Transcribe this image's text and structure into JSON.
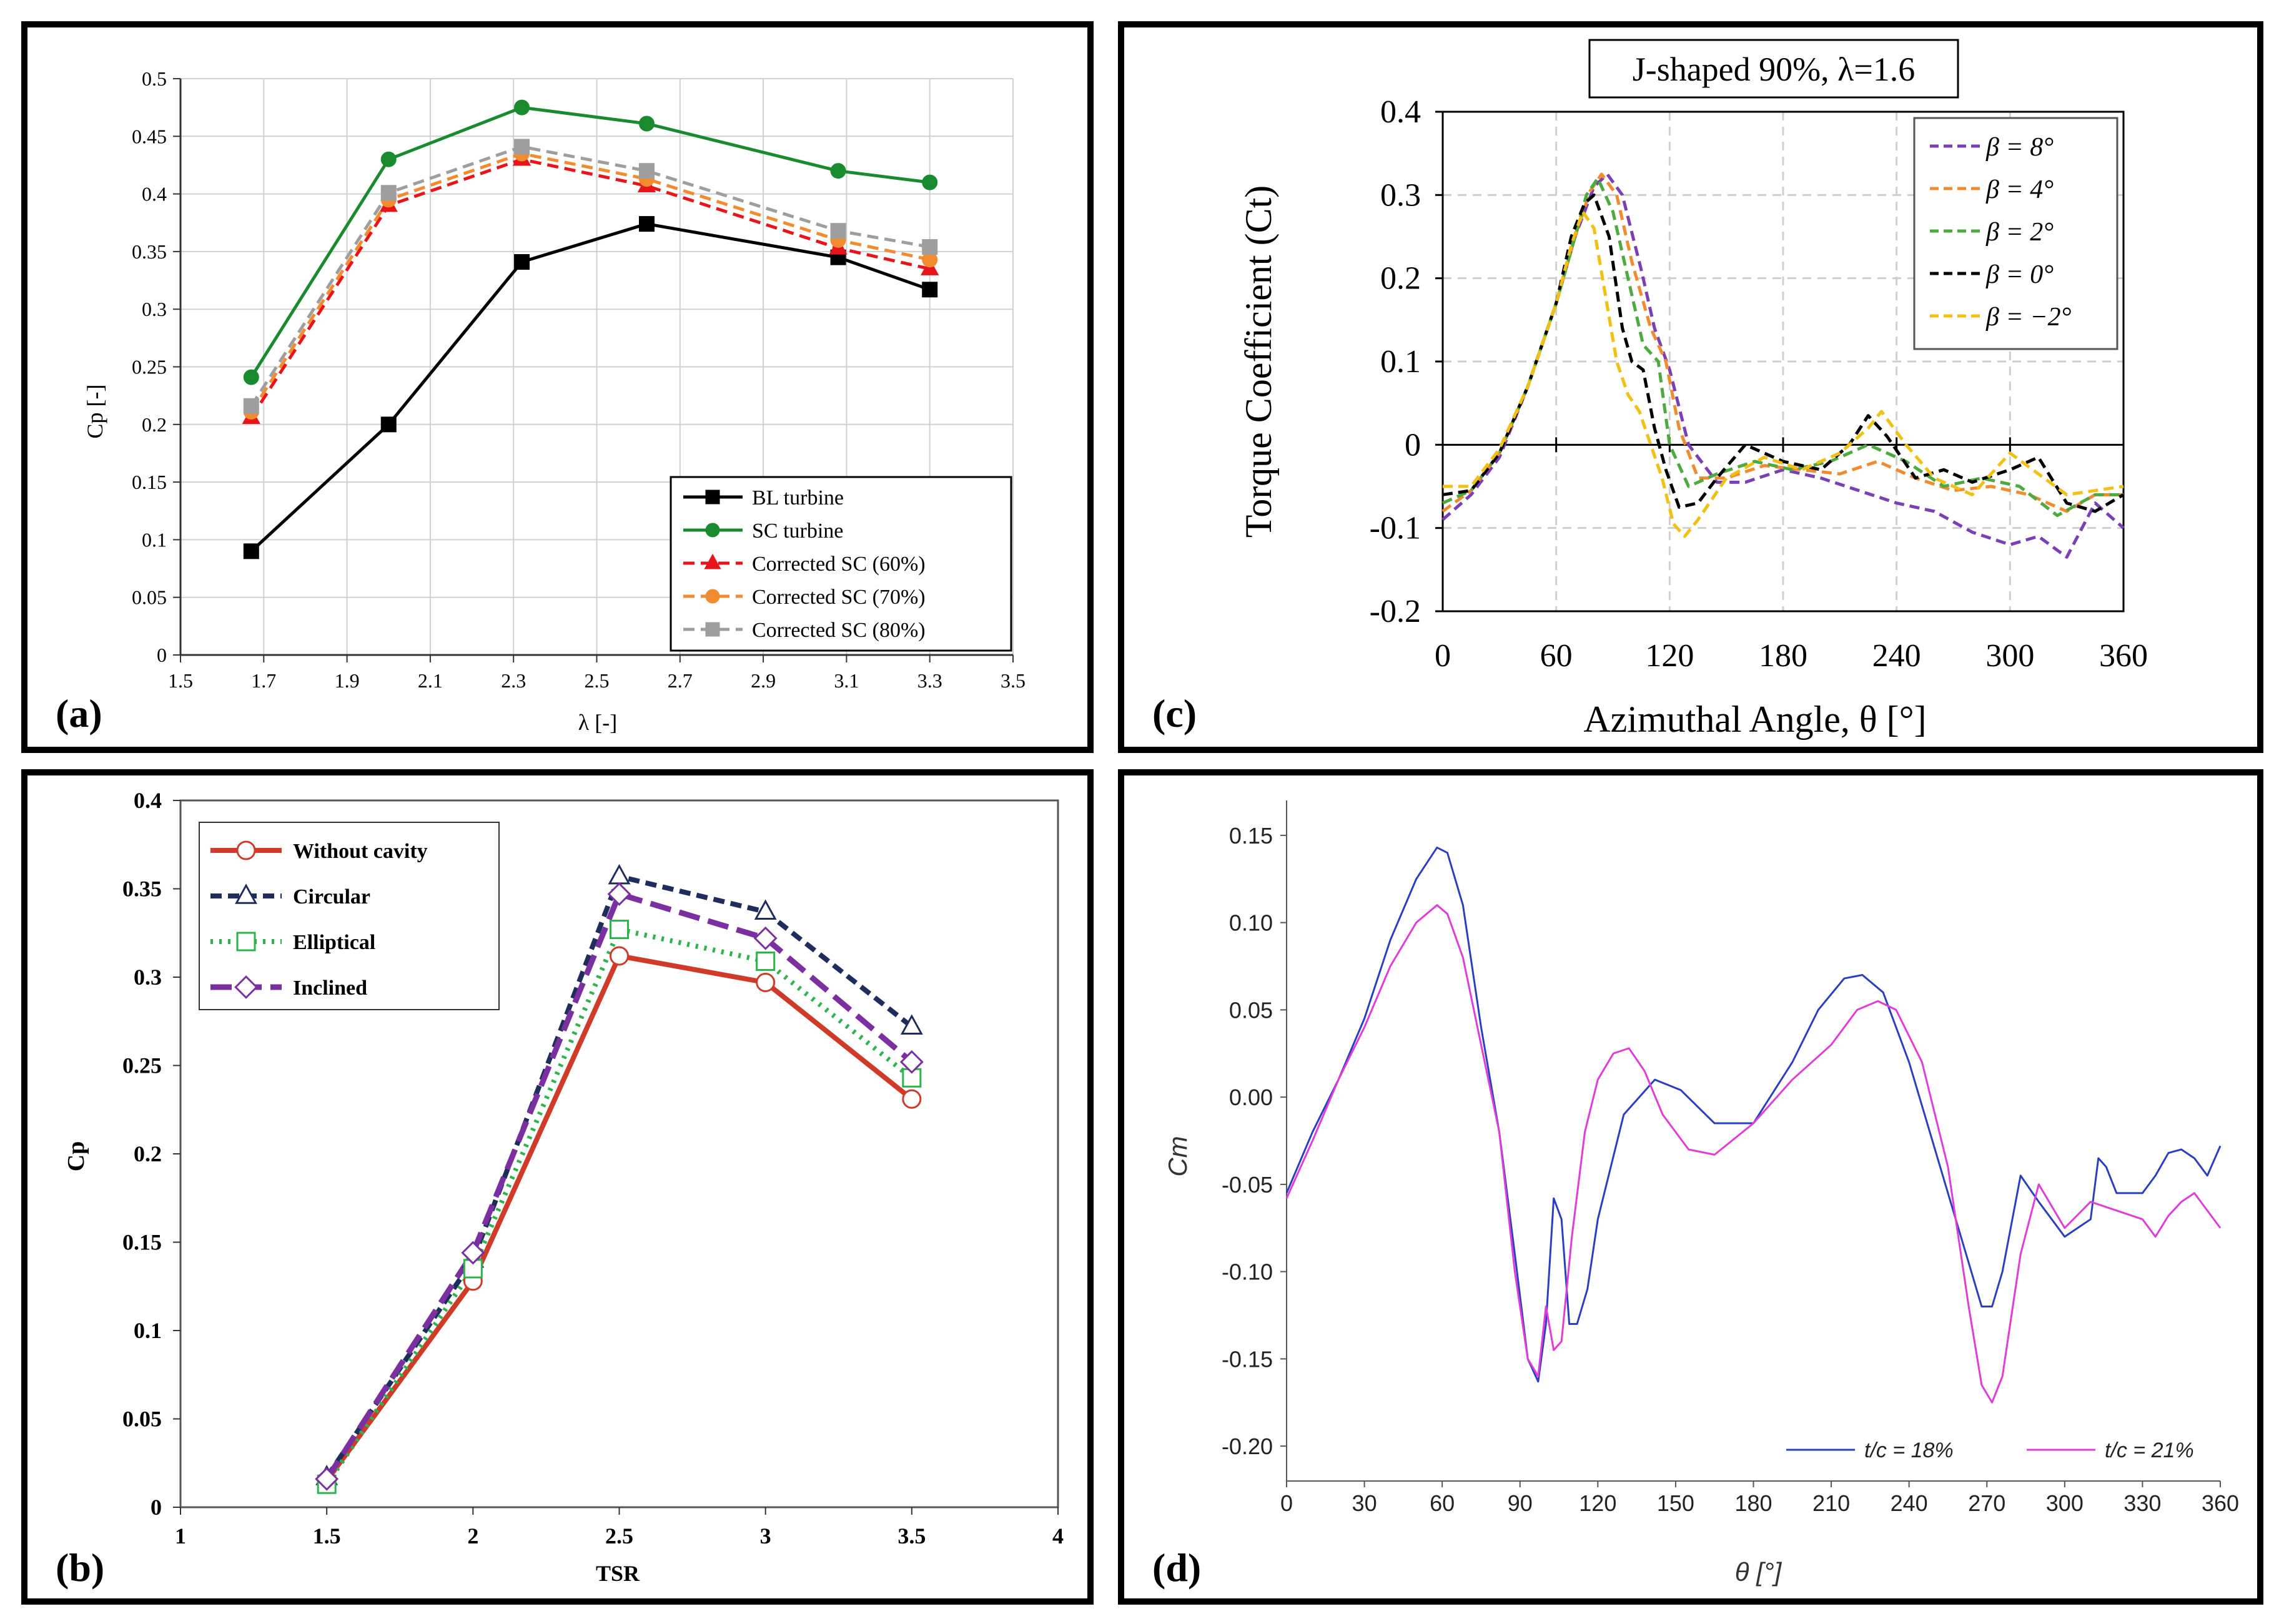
{
  "chart_data": [
    {
      "id": "a",
      "type": "line",
      "panel_label": "(a)",
      "xlabel": "λ [-]",
      "ylabel": "Cp [-]",
      "xlim": [
        1.5,
        3.5
      ],
      "ylim": [
        0,
        0.5
      ],
      "xticks": [
        "1.5",
        "1.7",
        "1.9",
        "2.1",
        "2.3",
        "2.5",
        "2.7",
        "2.9",
        "3.1",
        "3.3",
        "3.5"
      ],
      "yticks": [
        "0",
        "0.05",
        "0.1",
        "0.15",
        "0.2",
        "0.25",
        "0.3",
        "0.35",
        "0.4",
        "0.45",
        "0.5"
      ],
      "grid": true,
      "legend_position": "bottom-right",
      "x": [
        1.67,
        2.0,
        2.32,
        2.62,
        3.08,
        3.3
      ],
      "series": [
        {
          "name": "BL turbine",
          "color": "#000000",
          "dash": "solid",
          "marker": "square",
          "values": [
            0.09,
            0.2,
            0.341,
            0.374,
            0.345,
            0.317
          ]
        },
        {
          "name": "SC turbine",
          "color": "#1a8a2e",
          "dash": "solid",
          "marker": "circle",
          "values": [
            0.241,
            0.43,
            0.475,
            0.461,
            0.42,
            0.41
          ]
        },
        {
          "name": "Corrected SC (60%)",
          "color": "#e8141b",
          "dash": "dashed",
          "marker": "triangle",
          "values": [
            0.206,
            0.39,
            0.43,
            0.407,
            0.353,
            0.335
          ]
        },
        {
          "name": "Corrected SC (70%)",
          "color": "#f28b30",
          "dash": "dashed",
          "marker": "circle",
          "values": [
            0.211,
            0.395,
            0.435,
            0.413,
            0.36,
            0.343
          ]
        },
        {
          "name": "Corrected SC (80%)",
          "color": "#9e9e9e",
          "dash": "dashed",
          "marker": "square",
          "values": [
            0.216,
            0.401,
            0.441,
            0.42,
            0.368,
            0.354
          ]
        }
      ]
    },
    {
      "id": "b",
      "type": "line",
      "panel_label": "(b)",
      "xlabel": "TSR",
      "ylabel": "Cp",
      "xlim": [
        1,
        4
      ],
      "ylim": [
        0,
        0.4
      ],
      "xticks": [
        "1",
        "1.5",
        "2",
        "2.5",
        "3",
        "3.5",
        "4"
      ],
      "yticks": [
        "0",
        "0.05",
        "0.1",
        "0.15",
        "0.2",
        "0.25",
        "0.3",
        "0.35",
        "0.4"
      ],
      "grid": false,
      "legend_position": "top-left",
      "x": [
        1.5,
        2,
        2.5,
        3,
        3.5
      ],
      "series": [
        {
          "name": "Without cavity",
          "color": "#d03a28",
          "dash": "solid",
          "marker": "circle",
          "values": [
            0.015,
            0.128,
            0.312,
            0.297,
            0.231
          ]
        },
        {
          "name": "Circular",
          "color": "#1f2d5c",
          "dash": "dashed",
          "marker": "triangle",
          "values": [
            0.017,
            0.14,
            0.357,
            0.337,
            0.272
          ]
        },
        {
          "name": "Elliptical",
          "color": "#2cb34a",
          "dash": "dotted",
          "marker": "square",
          "values": [
            0.013,
            0.135,
            0.327,
            0.309,
            0.243
          ]
        },
        {
          "name": "Inclined",
          "color": "#7b2fa0",
          "dash": "longdash",
          "marker": "diamond",
          "values": [
            0.016,
            0.144,
            0.347,
            0.322,
            0.252
          ]
        }
      ]
    },
    {
      "id": "c",
      "type": "line",
      "panel_label": "(c)",
      "title": "J-shaped 90%, λ=1.6",
      "xlabel": "Azimuthal Angle, θ [°]",
      "ylabel": "Torque Coefficient (Ct)",
      "xlim": [
        0,
        360
      ],
      "ylim": [
        -0.2,
        0.4
      ],
      "xticks": [
        "0",
        "60",
        "120",
        "180",
        "240",
        "300",
        "360"
      ],
      "yticks": [
        "-0.2",
        "-0.1",
        "0",
        "0.1",
        "0.2",
        "0.3",
        "0.4"
      ],
      "grid": true,
      "legend_position": "top-right",
      "series": [
        {
          "name": "β = 8°",
          "color": "#7a3fb5",
          "dash": "dashed",
          "x": [
            0,
            15,
            30,
            45,
            60,
            70,
            80,
            87,
            95,
            105,
            112,
            120,
            130,
            145,
            160,
            180,
            200,
            220,
            240,
            260,
            280,
            300,
            315,
            330,
            345,
            360
          ],
          "values": [
            -0.09,
            -0.06,
            -0.015,
            0.07,
            0.17,
            0.25,
            0.31,
            0.325,
            0.3,
            0.21,
            0.14,
            0.09,
            0.0,
            -0.045,
            -0.045,
            -0.03,
            -0.04,
            -0.055,
            -0.07,
            -0.08,
            -0.105,
            -0.12,
            -0.11,
            -0.135,
            -0.07,
            -0.1
          ]
        },
        {
          "name": "β = 4°",
          "color": "#f28b30",
          "dash": "dashed",
          "x": [
            0,
            15,
            30,
            45,
            60,
            70,
            78,
            84,
            92,
            100,
            110,
            118,
            125,
            135,
            150,
            170,
            190,
            210,
            230,
            250,
            270,
            290,
            310,
            330,
            345,
            360
          ],
          "values": [
            -0.08,
            -0.055,
            -0.01,
            0.07,
            0.17,
            0.25,
            0.305,
            0.325,
            0.3,
            0.22,
            0.14,
            0.1,
            0.02,
            -0.04,
            -0.04,
            -0.025,
            -0.03,
            -0.035,
            -0.02,
            -0.04,
            -0.055,
            -0.05,
            -0.06,
            -0.08,
            -0.06,
            -0.06
          ]
        },
        {
          "name": "β = 2°",
          "color": "#4caa3e",
          "dash": "dashed",
          "x": [
            0,
            15,
            30,
            45,
            60,
            70,
            76,
            82,
            90,
            98,
            106,
            114,
            120,
            130,
            145,
            165,
            185,
            205,
            225,
            245,
            265,
            285,
            305,
            325,
            345,
            360
          ],
          "values": [
            -0.07,
            -0.055,
            -0.01,
            0.07,
            0.17,
            0.25,
            0.3,
            0.32,
            0.28,
            0.2,
            0.12,
            0.1,
            0.0,
            -0.05,
            -0.035,
            -0.02,
            -0.03,
            -0.02,
            0.0,
            -0.02,
            -0.05,
            -0.04,
            -0.05,
            -0.085,
            -0.06,
            -0.06
          ]
        },
        {
          "name": "β = 0°",
          "color": "#000000",
          "dash": "dashed",
          "x": [
            0,
            15,
            30,
            45,
            60,
            68,
            75,
            80,
            88,
            95,
            100,
            106,
            112,
            118,
            125,
            135,
            145,
            160,
            180,
            200,
            215,
            225,
            235,
            250,
            265,
            280,
            300,
            315,
            330,
            345,
            360
          ],
          "values": [
            -0.06,
            -0.055,
            -0.01,
            0.07,
            0.17,
            0.25,
            0.29,
            0.3,
            0.25,
            0.14,
            0.1,
            0.09,
            0.02,
            -0.03,
            -0.075,
            -0.07,
            -0.04,
            0.0,
            -0.02,
            -0.03,
            0.0,
            0.035,
            0.01,
            -0.04,
            -0.03,
            -0.045,
            -0.03,
            -0.015,
            -0.07,
            -0.08,
            -0.06
          ]
        },
        {
          "name": "β = −2°",
          "color": "#f2c013",
          "dash": "dashed",
          "x": [
            0,
            15,
            30,
            45,
            60,
            68,
            74,
            80,
            86,
            92,
            98,
            104,
            110,
            116,
            122,
            128,
            135,
            150,
            170,
            190,
            210,
            225,
            232,
            245,
            260,
            280,
            300,
            315,
            330,
            345,
            360
          ],
          "values": [
            -0.05,
            -0.05,
            -0.005,
            0.07,
            0.17,
            0.24,
            0.28,
            0.26,
            0.18,
            0.1,
            0.06,
            0.04,
            0.0,
            -0.04,
            -0.095,
            -0.11,
            -0.09,
            -0.04,
            -0.015,
            -0.03,
            -0.01,
            0.02,
            0.04,
            0.0,
            -0.04,
            -0.06,
            -0.01,
            -0.035,
            -0.06,
            -0.055,
            -0.05
          ]
        }
      ]
    },
    {
      "id": "d",
      "type": "line",
      "panel_label": "(d)",
      "xlabel": "θ [°]",
      "ylabel": "Cm",
      "xlim": [
        0,
        360
      ],
      "ylim": [
        -0.22,
        0.17
      ],
      "xticks": [
        "0",
        "30",
        "60",
        "90",
        "120",
        "150",
        "180",
        "210",
        "240",
        "270",
        "300",
        "330",
        "360"
      ],
      "yticks": [
        "-0.20",
        "-0.15",
        "-0.10",
        "-0.05",
        "0.00",
        "0.05",
        "0.10",
        "0.15"
      ],
      "grid": false,
      "legend_position": "bottom-right",
      "series": [
        {
          "name": "t/c = 18%",
          "color": "#2a3fc0",
          "x": [
            0,
            10,
            20,
            30,
            40,
            50,
            58,
            62,
            68,
            75,
            82,
            88,
            93,
            97,
            100,
            103,
            106,
            109,
            112,
            116,
            120,
            130,
            142,
            152,
            165,
            180,
            195,
            205,
            215,
            222,
            230,
            240,
            250,
            260,
            268,
            272,
            276,
            283,
            290,
            300,
            305,
            310,
            313,
            316,
            320,
            330,
            335,
            340,
            345,
            350,
            355,
            360
          ],
          "values": [
            -0.055,
            -0.02,
            0.01,
            0.045,
            0.09,
            0.125,
            0.143,
            0.14,
            0.11,
            0.04,
            -0.02,
            -0.09,
            -0.15,
            -0.163,
            -0.13,
            -0.058,
            -0.07,
            -0.13,
            -0.13,
            -0.11,
            -0.07,
            -0.01,
            0.01,
            0.004,
            -0.015,
            -0.015,
            0.02,
            0.05,
            0.068,
            0.07,
            0.06,
            0.02,
            -0.03,
            -0.08,
            -0.12,
            -0.12,
            -0.1,
            -0.045,
            -0.06,
            -0.08,
            -0.075,
            -0.07,
            -0.035,
            -0.04,
            -0.055,
            -0.055,
            -0.045,
            -0.032,
            -0.03,
            -0.035,
            -0.045,
            -0.028
          ]
        },
        {
          "name": "t/c = 21%",
          "color": "#e03cd8",
          "x": [
            0,
            10,
            20,
            30,
            40,
            50,
            58,
            62,
            68,
            75,
            82,
            88,
            93,
            97,
            100,
            103,
            106,
            110,
            115,
            120,
            126,
            132,
            138,
            145,
            155,
            165,
            180,
            195,
            210,
            220,
            228,
            235,
            245,
            255,
            263,
            268,
            272,
            276,
            283,
            290,
            300,
            310,
            320,
            330,
            335,
            340,
            345,
            350,
            360
          ],
          "values": [
            -0.058,
            -0.025,
            0.01,
            0.04,
            0.075,
            0.1,
            0.11,
            0.105,
            0.08,
            0.03,
            -0.02,
            -0.1,
            -0.15,
            -0.16,
            -0.12,
            -0.145,
            -0.14,
            -0.08,
            -0.02,
            0.01,
            0.025,
            0.028,
            0.015,
            -0.01,
            -0.03,
            -0.033,
            -0.015,
            0.01,
            0.03,
            0.05,
            0.055,
            0.05,
            0.02,
            -0.04,
            -0.12,
            -0.165,
            -0.175,
            -0.16,
            -0.09,
            -0.05,
            -0.075,
            -0.06,
            -0.065,
            -0.07,
            -0.08,
            -0.068,
            -0.06,
            -0.055,
            -0.075
          ]
        }
      ]
    }
  ]
}
